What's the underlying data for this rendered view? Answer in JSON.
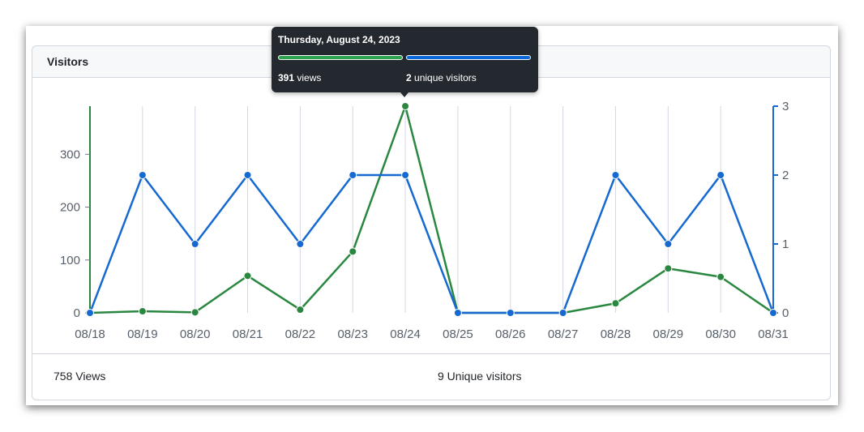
{
  "panel": {
    "title": "Visitors"
  },
  "tooltip": {
    "date": "Thursday, August 24, 2023",
    "views_value": "391",
    "views_label": "views",
    "uniques_value": "2",
    "uniques_label": "unique visitors"
  },
  "footer": {
    "views": "758 Views",
    "uniques": "9 Unique visitors"
  },
  "colors": {
    "views": "#2a8740",
    "uniques": "#1569d0",
    "grid": "#d4d7e3"
  },
  "chart_data": {
    "type": "line",
    "categories": [
      "08/18",
      "08/19",
      "08/20",
      "08/21",
      "08/22",
      "08/23",
      "08/24",
      "08/25",
      "08/26",
      "08/27",
      "08/28",
      "08/29",
      "08/30",
      "08/31"
    ],
    "series": [
      {
        "values": [
          0,
          3,
          1,
          70,
          6,
          116,
          391,
          0,
          0,
          0,
          18,
          84,
          68,
          0
        ],
        "axis": "left",
        "color": "#2a8740"
      },
      {
        "values": [
          0,
          2,
          1,
          2,
          1,
          2,
          2,
          0,
          0,
          0,
          2,
          1,
          2,
          0
        ],
        "axis": "right",
        "color": "#1569d0"
      }
    ],
    "y_left": {
      "ticks": [
        0,
        100,
        200,
        300
      ],
      "lim": [
        0,
        391
      ]
    },
    "y_right": {
      "ticks": [
        0,
        1,
        2,
        3
      ],
      "lim": [
        0,
        3
      ]
    },
    "highlight_index": 6,
    "grid": "vertical"
  }
}
